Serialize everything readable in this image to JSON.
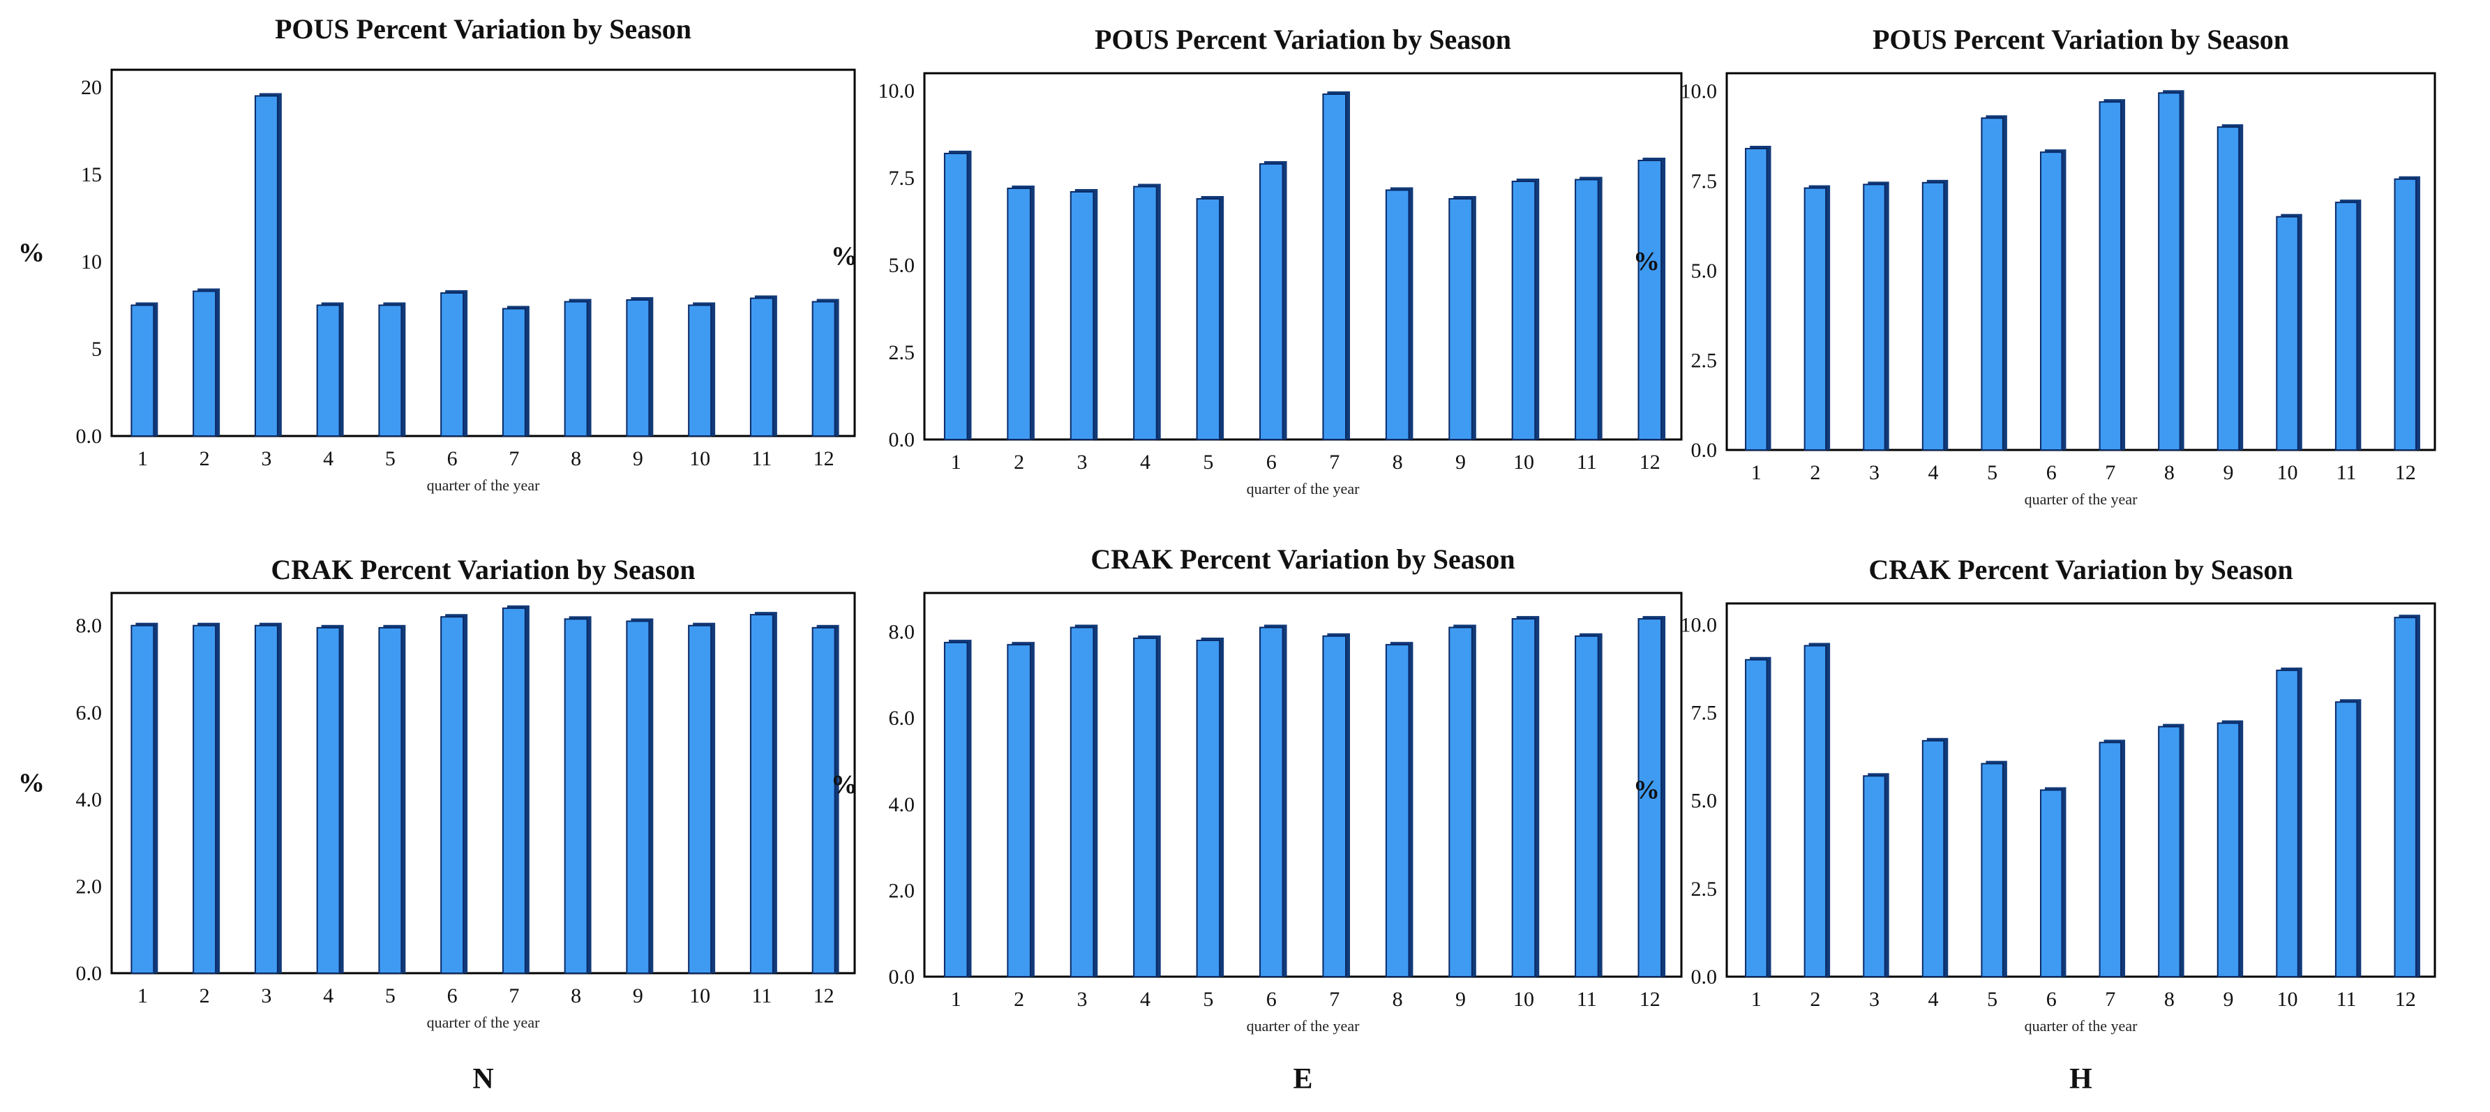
{
  "colors": {
    "bar_face": "#3f9bf2",
    "bar_edge": "#0a2a66",
    "bar_shadow": "#123a78",
    "axis": "#000000"
  },
  "chart_data": [
    {
      "type": "bar",
      "title": "POUS Percent Variation by Season",
      "ylabel": "%",
      "xlabel": "quarter of the year",
      "categories": [
        "1",
        "2",
        "3",
        "4",
        "5",
        "6",
        "7",
        "8",
        "9",
        "10",
        "11",
        "12"
      ],
      "values": [
        7.5,
        8.3,
        19.5,
        7.5,
        7.5,
        8.2,
        7.3,
        7.7,
        7.8,
        7.5,
        7.9,
        7.7
      ],
      "ylim": [
        0,
        21
      ],
      "yticks": [
        0,
        5,
        10,
        15,
        20
      ],
      "ytick_labels": [
        "0.0",
        "5",
        "10",
        "15",
        "20"
      ],
      "panel_label": ""
    },
    {
      "type": "bar",
      "title": "POUS Percent Variation by Season",
      "ylabel": "%",
      "xlabel": "quarter of the year",
      "categories": [
        "1",
        "2",
        "3",
        "4",
        "5",
        "6",
        "7",
        "8",
        "9",
        "10",
        "11",
        "12"
      ],
      "values": [
        8.2,
        7.2,
        7.1,
        7.25,
        6.9,
        7.9,
        9.9,
        7.15,
        6.9,
        7.4,
        7.45,
        8.0
      ],
      "ylim": [
        0,
        10.5
      ],
      "yticks": [
        0,
        2.5,
        5.0,
        7.5,
        10.0
      ],
      "ytick_labels": [
        "0.0",
        "2.5",
        "5.0",
        "7.5",
        "10.0"
      ],
      "panel_label": ""
    },
    {
      "type": "bar",
      "title": "POUS Percent Variation by Season",
      "ylabel": "%",
      "xlabel": "quarter of the year",
      "categories": [
        "1",
        "2",
        "3",
        "4",
        "5",
        "6",
        "7",
        "8",
        "9",
        "10",
        "11",
        "12"
      ],
      "values": [
        8.4,
        7.3,
        7.4,
        7.45,
        9.25,
        8.3,
        9.7,
        9.95,
        9.0,
        6.5,
        6.9,
        7.55
      ],
      "ylim": [
        0,
        10.5
      ],
      "yticks": [
        0,
        2.5,
        5.0,
        7.5,
        10.0
      ],
      "ytick_labels": [
        "0.0",
        "2.5",
        "5.0",
        "7.5",
        "10.0"
      ],
      "panel_label": ""
    },
    {
      "type": "bar",
      "title": "CRAK Percent Variation by Season",
      "ylabel": "%",
      "xlabel": "quarter of the year",
      "categories": [
        "1",
        "2",
        "3",
        "4",
        "5",
        "6",
        "7",
        "8",
        "9",
        "10",
        "11",
        "12"
      ],
      "values": [
        8.0,
        8.0,
        8.0,
        7.95,
        7.95,
        8.2,
        8.4,
        8.15,
        8.1,
        8.0,
        8.25,
        7.95
      ],
      "ylim": [
        0,
        8.75
      ],
      "yticks": [
        0,
        2,
        4,
        6,
        8
      ],
      "ytick_labels": [
        "0.0",
        "2.0",
        "4.0",
        "6.0",
        "8.0"
      ],
      "panel_label": "N"
    },
    {
      "type": "bar",
      "title": "CRAK Percent Variation by Season",
      "ylabel": "%",
      "xlabel": "quarter of the year",
      "categories": [
        "1",
        "2",
        "3",
        "4",
        "5",
        "6",
        "7",
        "8",
        "9",
        "10",
        "11",
        "12"
      ],
      "values": [
        7.75,
        7.7,
        8.1,
        7.85,
        7.8,
        8.1,
        7.9,
        7.7,
        8.1,
        8.3,
        7.9,
        8.3
      ],
      "ylim": [
        0,
        8.9
      ],
      "yticks": [
        0,
        2,
        4,
        6,
        8
      ],
      "ytick_labels": [
        "0.0",
        "2.0",
        "4.0",
        "6.0",
        "8.0"
      ],
      "panel_label": "E"
    },
    {
      "type": "bar",
      "title": "CRAK Percent Variation by Season",
      "ylabel": "%",
      "xlabel": "quarter of the year",
      "categories": [
        "1",
        "2",
        "3",
        "4",
        "5",
        "6",
        "7",
        "8",
        "9",
        "10",
        "11",
        "12"
      ],
      "values": [
        9.0,
        9.4,
        5.7,
        6.7,
        6.05,
        5.3,
        6.65,
        7.1,
        7.2,
        8.7,
        7.8,
        10.2
      ],
      "ylim": [
        0,
        10.6
      ],
      "yticks": [
        0,
        2.5,
        5.0,
        7.5,
        10.0
      ],
      "ytick_labels": [
        "0.0",
        "2.5",
        "5.0",
        "7.5",
        "10.0"
      ],
      "panel_label": "H"
    }
  ]
}
